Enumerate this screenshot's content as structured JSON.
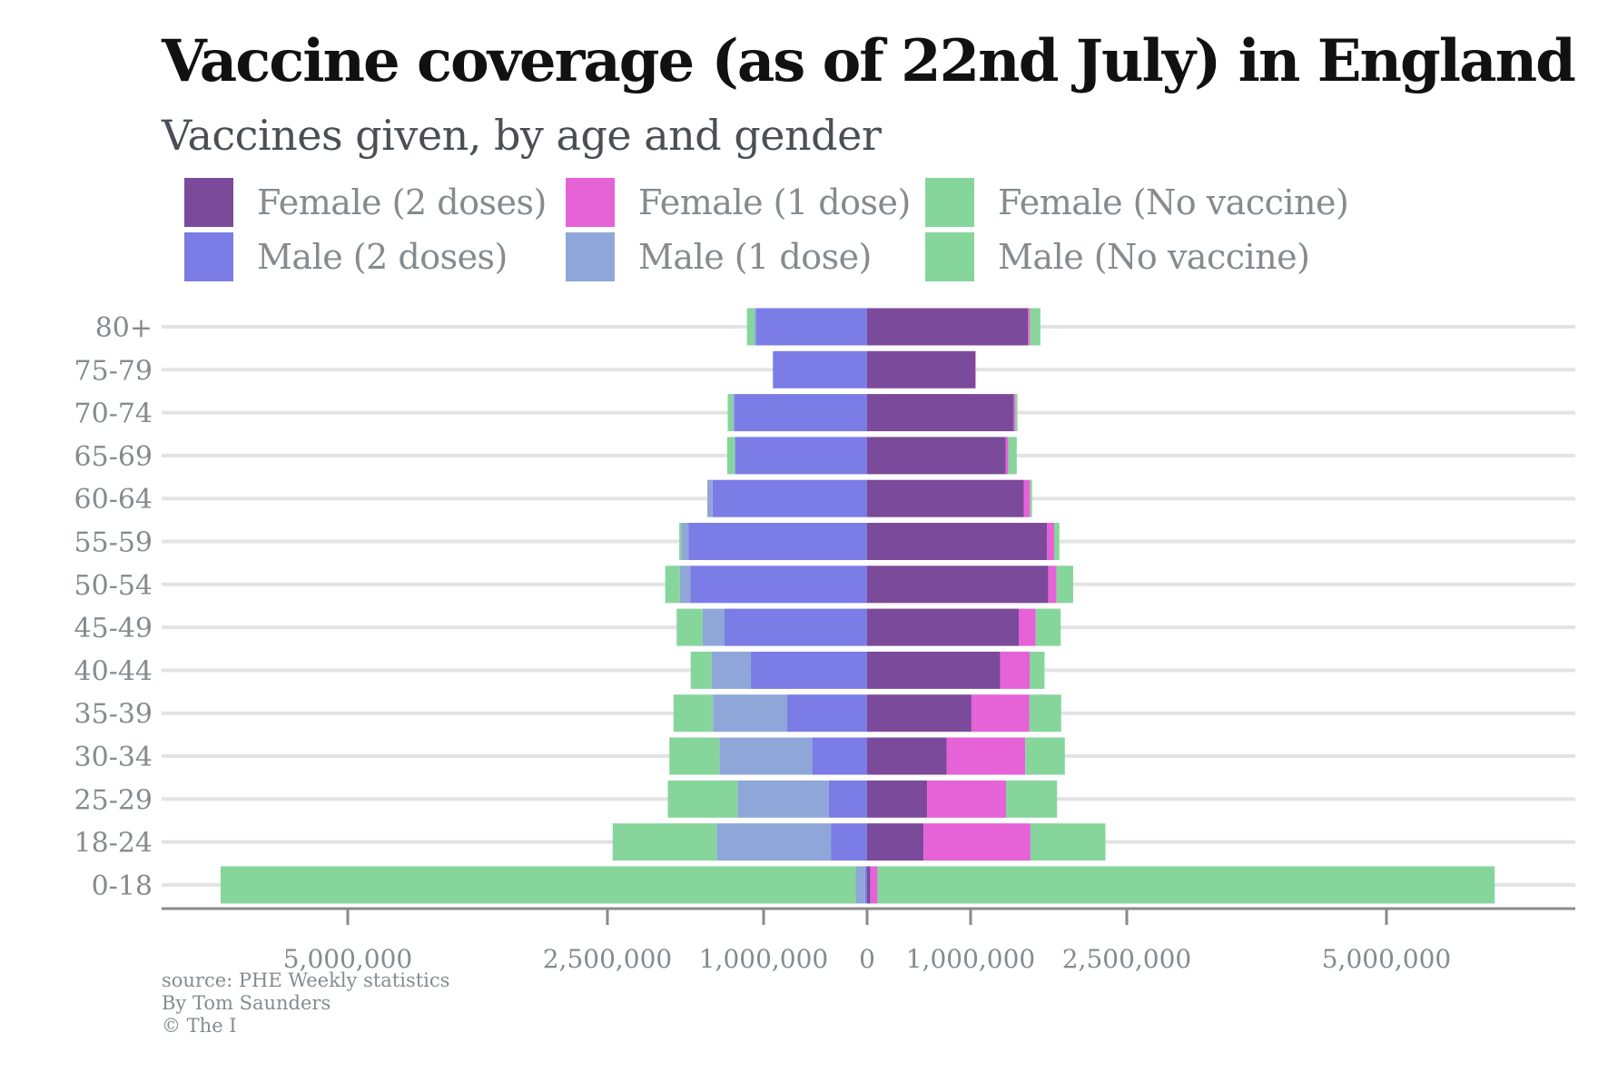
{
  "title": "Vaccine coverage (as of 22nd July) in England",
  "subtitle": "Vaccines given, by age and gender",
  "legend": [
    {
      "label": "Female (2 doses)",
      "color": "#7b4a9a"
    },
    {
      "label": "Female (1 dose)",
      "color": "#e562d7"
    },
    {
      "label": "Female (No vaccine)",
      "color": "#86d69c"
    },
    {
      "label": "Male (2 doses)",
      "color": "#7b7ce6"
    },
    {
      "label": "Male (1 dose)",
      "color": "#8fa6d8"
    },
    {
      "label": "Male (No vaccine)",
      "color": "#86d69c"
    }
  ],
  "footer": {
    "source": "source: PHE Weekly statistics",
    "author": "By Tom Saunders",
    "copyright": "© The I"
  },
  "chart_data": {
    "type": "bar",
    "orientation": "horizontal-diverging",
    "categories": [
      "80+",
      "75-79",
      "70-74",
      "65-69",
      "60-64",
      "55-59",
      "50-54",
      "45-49",
      "40-44",
      "35-39",
      "30-34",
      "25-29",
      "18-24",
      "0-18"
    ],
    "x_tick_labels": [
      "5,000,000",
      "2,500,000",
      "1,000,000",
      "0",
      "1,000,000",
      "2,500,000",
      "5,000,000"
    ],
    "x_scale": "symmetric-log",
    "x_tick_values": [
      -5000000,
      -2500000,
      -1000000,
      0,
      1000000,
      2500000,
      5000000
    ],
    "xlim": [
      -9100000,
      9100000
    ],
    "grid": true,
    "legend_position": "top",
    "series": [
      {
        "name": "Female (2 doses)",
        "side": "right",
        "values": [
          1550000,
          1045000,
          1413000,
          1338000,
          1510000,
          1733000,
          1745000,
          1465000,
          1283000,
          1008000,
          770000,
          580000,
          545000,
          30000
        ]
      },
      {
        "name": "Female (1 dose)",
        "side": "right",
        "values": [
          20000,
          5000,
          17000,
          25000,
          60000,
          70000,
          80000,
          160000,
          287000,
          557000,
          755000,
          760000,
          1030000,
          70000
        ]
      },
      {
        "name": "Female (No vaccine)",
        "side": "right",
        "values": [
          100000,
          0,
          20000,
          80000,
          20000,
          50000,
          160000,
          240000,
          140000,
          305000,
          380000,
          490000,
          720000,
          7250000
        ]
      },
      {
        "name": "Male (2 doses)",
        "side": "left",
        "values": [
          1070000,
          910000,
          1280000,
          1270000,
          1490000,
          1720000,
          1705000,
          1375000,
          1125000,
          775000,
          530000,
          370000,
          350000,
          20000
        ]
      },
      {
        "name": "Male (1 dose)",
        "side": "left",
        "values": [
          20000,
          0,
          15000,
          10000,
          50000,
          70000,
          100000,
          210000,
          375000,
          710000,
          895000,
          880000,
          1100000,
          90000
        ]
      },
      {
        "name": "Male (No vaccine)",
        "side": "left",
        "values": [
          70000,
          0,
          50000,
          70000,
          0,
          20000,
          140000,
          250000,
          200000,
          380000,
          480000,
          670000,
          1000000,
          7650000
        ]
      }
    ]
  }
}
